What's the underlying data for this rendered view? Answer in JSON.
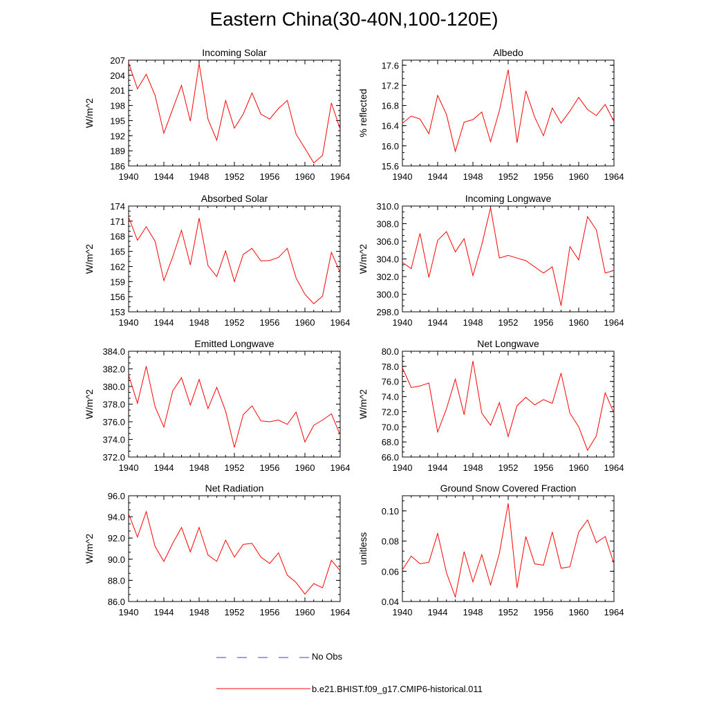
{
  "title": "Eastern China(30-40N,100-120E)",
  "colors": {
    "model": "#ff0000",
    "obs": "#3b3bd6",
    "axis": "#000000"
  },
  "legend": [
    {
      "label": "No Obs",
      "style": "dashed",
      "color": "#3b3bd6"
    },
    {
      "label": "b.e21.BHIST.f09_g17.CMIP6-historical.011",
      "style": "solid",
      "color": "#ff0000"
    }
  ],
  "chart_data": [
    {
      "type": "line",
      "title": "Incoming Solar",
      "xlabel": "",
      "ylabel": "W/m^2",
      "xlim": [
        1940,
        1964
      ],
      "ylim": [
        186,
        207
      ],
      "xticks": [
        1940,
        1944,
        1948,
        1952,
        1956,
        1960,
        1964
      ],
      "yticks": [
        "186",
        "189",
        "192",
        "195",
        "198",
        "201",
        "204",
        "207"
      ],
      "x": [
        1940,
        1941,
        1942,
        1943,
        1944,
        1945,
        1946,
        1947,
        1948,
        1949,
        1950,
        1951,
        1952,
        1953,
        1954,
        1955,
        1956,
        1957,
        1958,
        1959,
        1960,
        1961,
        1962,
        1963,
        1964
      ],
      "series": [
        {
          "name": "b.e21.BHIST.f09_g17.CMIP6-historical.011",
          "values": [
            206.5,
            201.3,
            204.2,
            200.0,
            192.5,
            197.3,
            202.0,
            194.9,
            206.3,
            195.3,
            191.1,
            199.0,
            193.5,
            196.3,
            200.5,
            196.3,
            195.3,
            197.4,
            199.0,
            192.3,
            189.5,
            186.6,
            188.1,
            198.5,
            193.3
          ]
        }
      ]
    },
    {
      "type": "line",
      "title": "Albedo",
      "xlabel": "",
      "ylabel": "% reflected",
      "xlim": [
        1940,
        1964
      ],
      "ylim": [
        15.6,
        17.7
      ],
      "xticks": [
        1940,
        1944,
        1948,
        1952,
        1956,
        1960,
        1964
      ],
      "yticks": [
        "15.6",
        "16.0",
        "16.4",
        "16.8",
        "17.2",
        "17.6"
      ],
      "x": [
        1940,
        1941,
        1942,
        1943,
        1944,
        1945,
        1946,
        1947,
        1948,
        1949,
        1950,
        1951,
        1952,
        1953,
        1954,
        1955,
        1956,
        1957,
        1958,
        1959,
        1960,
        1961,
        1962,
        1963,
        1964
      ],
      "series": [
        {
          "name": "b.e21.BHIST.f09_g17.CMIP6-historical.011",
          "values": [
            16.45,
            16.59,
            16.53,
            16.24,
            17.0,
            16.62,
            15.89,
            16.47,
            16.52,
            16.67,
            16.08,
            16.7,
            17.51,
            16.06,
            17.09,
            16.57,
            16.2,
            16.75,
            16.45,
            16.69,
            16.96,
            16.72,
            16.6,
            16.82,
            16.48
          ]
        }
      ]
    },
    {
      "type": "line",
      "title": "Absorbed Solar",
      "xlabel": "",
      "ylabel": "W/m^2",
      "xlim": [
        1940,
        1964
      ],
      "ylim": [
        153,
        174
      ],
      "xticks": [
        1940,
        1944,
        1948,
        1952,
        1956,
        1960,
        1964
      ],
      "yticks": [
        "153",
        "156",
        "159",
        "162",
        "165",
        "168",
        "171",
        "174"
      ],
      "x": [
        1940,
        1941,
        1942,
        1943,
        1944,
        1945,
        1946,
        1947,
        1948,
        1949,
        1950,
        1951,
        1952,
        1953,
        1954,
        1955,
        1956,
        1957,
        1958,
        1959,
        1960,
        1961,
        1962,
        1963,
        1964
      ],
      "series": [
        {
          "name": "b.e21.BHIST.f09_g17.CMIP6-historical.011",
          "values": [
            171.8,
            167.2,
            169.9,
            167.0,
            159.2,
            163.9,
            169.2,
            162.3,
            171.6,
            162.2,
            160.0,
            165.1,
            159.0,
            164.4,
            165.6,
            163.1,
            163.2,
            163.8,
            165.6,
            159.7,
            156.5,
            154.6,
            156.1,
            164.8,
            160.8
          ]
        }
      ]
    },
    {
      "type": "line",
      "title": "Incoming Longwave",
      "xlabel": "",
      "ylabel": "W/m^2",
      "xlim": [
        1940,
        1964
      ],
      "ylim": [
        298.0,
        310.0
      ],
      "xticks": [
        1940,
        1944,
        1948,
        1952,
        1956,
        1960,
        1964
      ],
      "yticks": [
        "298.0",
        "300.0",
        "302.0",
        "304.0",
        "306.0",
        "308.0",
        "310.0"
      ],
      "x": [
        1940,
        1941,
        1942,
        1943,
        1944,
        1945,
        1946,
        1947,
        1948,
        1949,
        1950,
        1951,
        1952,
        1953,
        1954,
        1955,
        1956,
        1957,
        1958,
        1959,
        1960,
        1961,
        1962,
        1963,
        1964
      ],
      "series": [
        {
          "name": "b.e21.BHIST.f09_g17.CMIP6-historical.011",
          "values": [
            303.6,
            302.9,
            306.9,
            301.9,
            306.1,
            307.1,
            304.8,
            306.3,
            302.1,
            305.6,
            309.8,
            304.1,
            304.4,
            304.1,
            303.8,
            303.1,
            302.4,
            303.1,
            298.7,
            305.4,
            303.9,
            308.8,
            307.3,
            302.4,
            302.7
          ]
        }
      ]
    },
    {
      "type": "line",
      "title": "Emitted Longwave",
      "xlabel": "",
      "ylabel": "W/m^2",
      "xlim": [
        1940,
        1964
      ],
      "ylim": [
        372.0,
        384.0
      ],
      "xticks": [
        1940,
        1944,
        1948,
        1952,
        1956,
        1960,
        1964
      ],
      "yticks": [
        "372.0",
        "374.0",
        "376.0",
        "378.0",
        "380.0",
        "382.0",
        "384.0"
      ],
      "x": [
        1940,
        1941,
        1942,
        1943,
        1944,
        1945,
        1946,
        1947,
        1948,
        1949,
        1950,
        1951,
        1952,
        1953,
        1954,
        1955,
        1956,
        1957,
        1958,
        1959,
        1960,
        1961,
        1962,
        1963,
        1964
      ],
      "series": [
        {
          "name": "b.e21.BHIST.f09_g17.CMIP6-historical.011",
          "values": [
            381.3,
            378.1,
            382.3,
            377.7,
            375.4,
            379.5,
            381.0,
            377.9,
            380.8,
            377.5,
            379.9,
            377.2,
            373.1,
            376.8,
            377.8,
            376.1,
            376.0,
            376.2,
            375.7,
            377.1,
            373.7,
            375.6,
            376.2,
            376.9,
            374.5
          ]
        }
      ]
    },
    {
      "type": "line",
      "title": "Net Longwave",
      "xlabel": "",
      "ylabel": "W/m^2",
      "xlim": [
        1940,
        1964
      ],
      "ylim": [
        66.0,
        80.0
      ],
      "xticks": [
        1940,
        1944,
        1948,
        1952,
        1956,
        1960,
        1964
      ],
      "yticks": [
        "66.0",
        "68.0",
        "70.0",
        "72.0",
        "74.0",
        "76.0",
        "78.0",
        "80.0"
      ],
      "x": [
        1940,
        1941,
        1942,
        1943,
        1944,
        1945,
        1946,
        1947,
        1948,
        1949,
        1950,
        1951,
        1952,
        1953,
        1954,
        1955,
        1956,
        1957,
        1958,
        1959,
        1960,
        1961,
        1962,
        1963,
        1964
      ],
      "series": [
        {
          "name": "b.e21.BHIST.f09_g17.CMIP6-historical.011",
          "values": [
            77.8,
            75.2,
            75.4,
            75.8,
            69.3,
            72.4,
            76.3,
            71.6,
            78.7,
            71.8,
            70.2,
            73.2,
            68.7,
            72.8,
            73.9,
            72.9,
            73.6,
            73.1,
            77.1,
            71.8,
            70.0,
            66.9,
            68.8,
            74.5,
            71.8
          ]
        }
      ]
    },
    {
      "type": "line",
      "title": "Net Radiation",
      "xlabel": "",
      "ylabel": "W/m^2",
      "xlim": [
        1940,
        1964
      ],
      "ylim": [
        86.0,
        96.0
      ],
      "xticks": [
        1940,
        1944,
        1948,
        1952,
        1956,
        1960,
        1964
      ],
      "yticks": [
        "86.0",
        "88.0",
        "90.0",
        "92.0",
        "94.0",
        "96.0"
      ],
      "x": [
        1940,
        1941,
        1942,
        1943,
        1944,
        1945,
        1946,
        1947,
        1948,
        1949,
        1950,
        1951,
        1952,
        1953,
        1954,
        1955,
        1956,
        1957,
        1958,
        1959,
        1960,
        1961,
        1962,
        1963,
        1964
      ],
      "series": [
        {
          "name": "b.e21.BHIST.f09_g17.CMIP6-historical.011",
          "values": [
            94.3,
            92.1,
            94.5,
            91.2,
            89.8,
            91.5,
            93.0,
            90.7,
            93.0,
            90.4,
            89.8,
            91.8,
            90.2,
            91.4,
            91.5,
            90.2,
            89.6,
            90.6,
            88.5,
            87.8,
            86.7,
            87.7,
            87.3,
            89.9,
            88.9
          ]
        }
      ]
    },
    {
      "type": "line",
      "title": "Ground Snow Covered Fraction",
      "xlabel": "",
      "ylabel": "unitless",
      "xlim": [
        1940,
        1964
      ],
      "ylim": [
        0.04,
        0.11
      ],
      "xticks": [
        1940,
        1944,
        1948,
        1952,
        1956,
        1960,
        1964
      ],
      "yticks": [
        "0.04",
        "0.06",
        "0.08",
        "0.10"
      ],
      "x": [
        1940,
        1941,
        1942,
        1943,
        1944,
        1945,
        1946,
        1947,
        1948,
        1949,
        1950,
        1951,
        1952,
        1953,
        1954,
        1955,
        1956,
        1957,
        1958,
        1959,
        1960,
        1961,
        1962,
        1963,
        1964
      ],
      "series": [
        {
          "name": "b.e21.BHIST.f09_g17.CMIP6-historical.011",
          "values": [
            0.061,
            0.07,
            0.065,
            0.066,
            0.085,
            0.059,
            0.043,
            0.073,
            0.053,
            0.071,
            0.051,
            0.072,
            0.105,
            0.049,
            0.083,
            0.065,
            0.064,
            0.086,
            0.062,
            0.063,
            0.086,
            0.094,
            0.079,
            0.083,
            0.065
          ]
        }
      ]
    }
  ]
}
